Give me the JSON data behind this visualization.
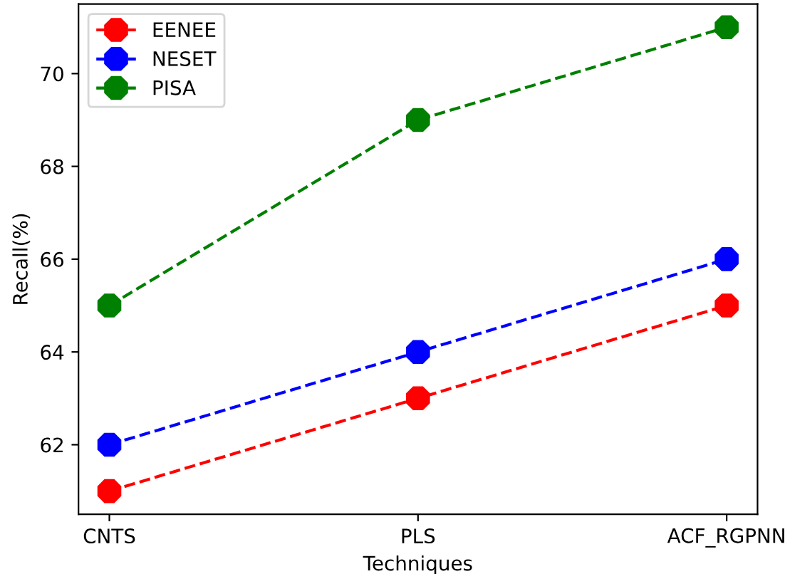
{
  "chart_data": {
    "type": "line",
    "xlabel": "Techniques",
    "ylabel": "Recall(%)",
    "categories": [
      "CNTS",
      "PLS",
      "ACF_RGPNN"
    ],
    "series": [
      {
        "name": "EENEE",
        "color": "#ff0000",
        "values": [
          61,
          63,
          65
        ]
      },
      {
        "name": "NESET",
        "color": "#0000ff",
        "values": [
          62,
          64,
          66
        ]
      },
      {
        "name": "PISA",
        "color": "#008000",
        "values": [
          65,
          69,
          71
        ]
      }
    ],
    "ylim": [
      60.5,
      71.5
    ],
    "yticks": [
      62,
      64,
      66,
      68,
      70
    ],
    "marker": "circle",
    "line_style": "dashed",
    "legend": "top left",
    "grid": false
  }
}
